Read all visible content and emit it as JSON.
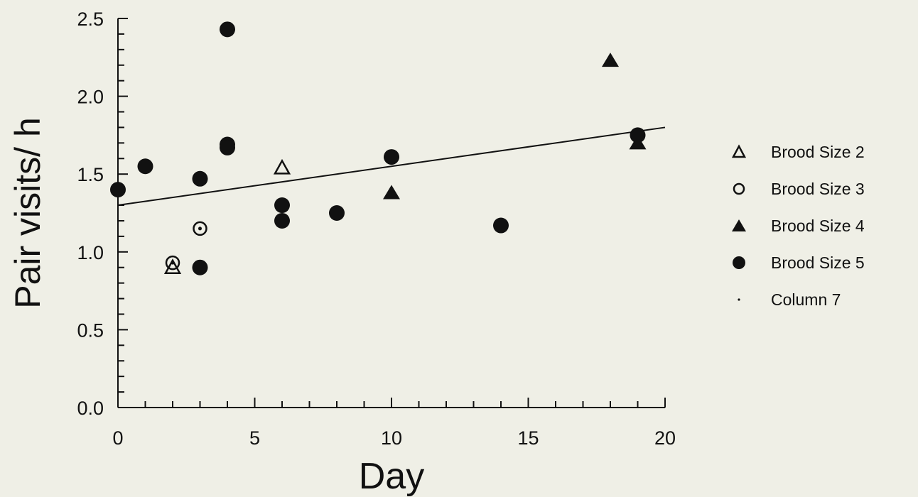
{
  "chart_data": {
    "type": "scatter",
    "xlabel": "Day",
    "ylabel": "Pair visits/ h",
    "xlim": [
      0,
      20
    ],
    "ylim": [
      0,
      2.5
    ],
    "xticks": [
      "0",
      "5",
      "10",
      "15",
      "20"
    ],
    "yticks": [
      "0.0",
      "0.5",
      "1.0",
      "1.5",
      "2.0",
      "2.5"
    ],
    "grid": false,
    "legend_position": "right",
    "series": [
      {
        "name": "Brood Size 2",
        "marker": "open-triangle",
        "points": [
          [
            6,
            1.54
          ],
          [
            2,
            0.9
          ]
        ]
      },
      {
        "name": "Brood Size 3",
        "marker": "open-circle",
        "points": [
          [
            2,
            0.93
          ],
          [
            3,
            1.15
          ]
        ]
      },
      {
        "name": "Brood Size 4",
        "marker": "filled-triangle",
        "points": [
          [
            10,
            1.38
          ],
          [
            18,
            2.23
          ],
          [
            19,
            1.7
          ]
        ]
      },
      {
        "name": "Brood Size 5",
        "marker": "filled-circle",
        "points": [
          [
            0,
            1.4
          ],
          [
            1,
            1.55
          ],
          [
            3,
            1.47
          ],
          [
            3,
            0.9
          ],
          [
            4,
            2.43
          ],
          [
            4,
            1.69
          ],
          [
            4,
            1.67
          ],
          [
            6,
            1.3
          ],
          [
            6,
            1.2
          ],
          [
            8,
            1.25
          ],
          [
            10,
            1.61
          ],
          [
            14,
            1.17
          ],
          [
            19,
            1.75
          ]
        ]
      },
      {
        "name": "Column 7",
        "marker": "dot",
        "points": []
      }
    ],
    "fit_line": {
      "x": [
        0,
        20
      ],
      "y": [
        1.3,
        1.8
      ]
    }
  }
}
